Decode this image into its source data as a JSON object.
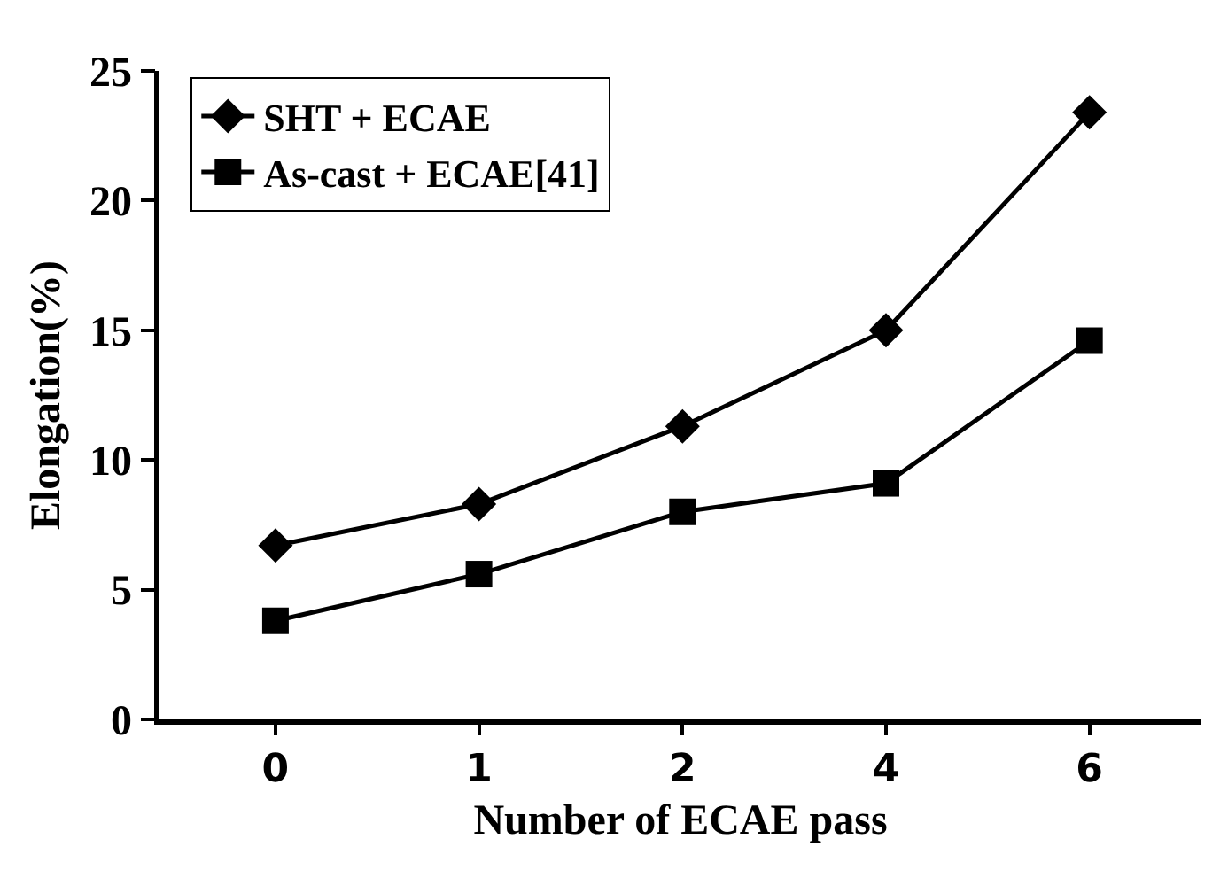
{
  "chart_data": {
    "type": "line",
    "xlabel": "Number of ECAE pass",
    "ylabel": "Elongation(%)",
    "categories": [
      "0",
      "1",
      "2",
      "4",
      "6"
    ],
    "series": [
      {
        "name": "SHT + ECAE",
        "color": "#000000",
        "marker": "diamond",
        "values": [
          6.7,
          8.3,
          11.3,
          15.0,
          23.4
        ]
      },
      {
        "name": "As-cast + ECAE[41]",
        "color": "#000000",
        "marker": "square",
        "values": [
          3.8,
          5.6,
          8.0,
          9.1,
          14.6
        ]
      }
    ],
    "ylim": [
      0,
      25
    ],
    "yticks": [
      0,
      5,
      10,
      15,
      20,
      25
    ],
    "legend": "top left",
    "line_style": "solid"
  }
}
